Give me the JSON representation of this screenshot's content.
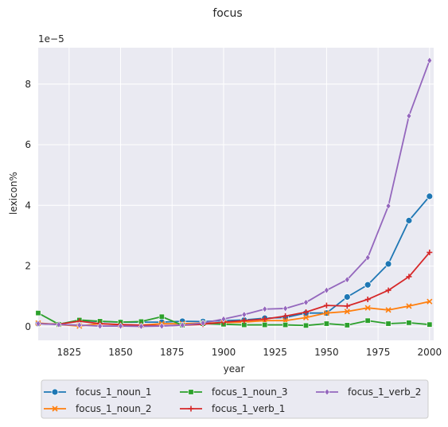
{
  "chart_data": {
    "type": "line",
    "title": "focus",
    "xlabel": "year",
    "ylabel": "lexicon%",
    "y_offset_label": "1e−5",
    "xlim": [
      1810,
      2002
    ],
    "ylim": [
      -0.45,
      9.2
    ],
    "x_ticks": [
      1825,
      1850,
      1875,
      1900,
      1925,
      1950,
      1975,
      2000
    ],
    "y_ticks": [
      0,
      2,
      4,
      6,
      8
    ],
    "grid": true,
    "legend_position": "bottom-center",
    "x": [
      1810,
      1820,
      1830,
      1840,
      1850,
      1860,
      1870,
      1880,
      1890,
      1900,
      1910,
      1920,
      1930,
      1940,
      1950,
      1960,
      1970,
      1980,
      1990,
      2000
    ],
    "series": [
      {
        "name": "focus_1_noun_1",
        "color": "#1f77b4",
        "marker": "circle",
        "values": [
          0.1,
          0.08,
          0.2,
          0.17,
          0.15,
          0.15,
          0.15,
          0.18,
          0.17,
          0.2,
          0.22,
          0.28,
          0.3,
          0.45,
          0.45,
          0.98,
          1.38,
          2.07,
          3.5,
          4.3
        ]
      },
      {
        "name": "focus_1_noun_2",
        "color": "#ff7f0e",
        "marker": "x",
        "values": [
          0.12,
          0.07,
          0.02,
          0.1,
          0.06,
          0.05,
          0.1,
          0.1,
          0.12,
          0.13,
          0.15,
          0.2,
          0.2,
          0.3,
          0.45,
          0.5,
          0.62,
          0.55,
          0.68,
          0.83
        ]
      },
      {
        "name": "focus_1_noun_3",
        "color": "#2ca02c",
        "marker": "square",
        "values": [
          0.45,
          0.08,
          0.22,
          0.18,
          0.15,
          0.17,
          0.33,
          0.05,
          0.1,
          0.08,
          0.06,
          0.06,
          0.06,
          0.04,
          0.1,
          0.05,
          0.2,
          0.1,
          0.13,
          0.07
        ]
      },
      {
        "name": "focus_1_verb_1",
        "color": "#d62728",
        "marker": "plus",
        "values": [
          0.1,
          0.08,
          0.18,
          0.1,
          0.07,
          0.05,
          0.03,
          0.05,
          0.08,
          0.15,
          0.2,
          0.25,
          0.35,
          0.48,
          0.7,
          0.68,
          0.9,
          1.2,
          1.65,
          2.45
        ]
      },
      {
        "name": "focus_1_verb_2",
        "color": "#9467bd",
        "marker": "diamond",
        "values": [
          0.1,
          0.07,
          0.05,
          0.02,
          0.02,
          0.01,
          0.02,
          0.05,
          0.12,
          0.25,
          0.4,
          0.58,
          0.6,
          0.8,
          1.2,
          1.55,
          2.28,
          3.98,
          6.95,
          8.78
        ]
      }
    ]
  }
}
